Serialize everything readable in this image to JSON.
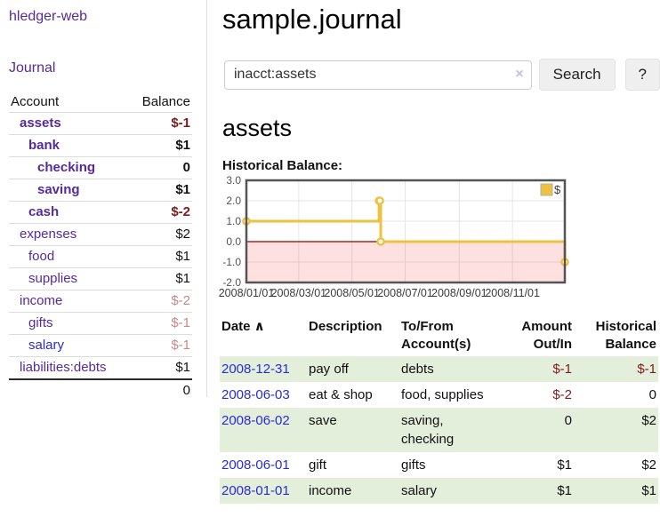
{
  "colors": {
    "accent_purple": "#542b9e",
    "link_blue": "#2b2bd5",
    "negative_strong": "#7e1c1c",
    "negative_muted": "#c98989",
    "row_stripe_green": "#e3eedb",
    "chart_line_gold": "#edc240",
    "chart_negative_fill": "rgba(255,0,0,0.12)",
    "chart_zero_line": "#8b0000",
    "chart_border": "#545454",
    "chart_grid": "#e6e6e6",
    "chart_tick_text": "#545454"
  },
  "app": {
    "brand": "hledger-web",
    "nav_journal": "Journal"
  },
  "sidebar": {
    "header": {
      "account": "Account",
      "balance": "Balance"
    },
    "accounts": [
      {
        "name": "assets",
        "indent": 1,
        "bold": true,
        "link": "purple",
        "balance": "$-1",
        "balance_style": "neg-strong"
      },
      {
        "name": "bank",
        "indent": 2,
        "bold": true,
        "link": "purple",
        "balance": "$1",
        "balance_style": "plain"
      },
      {
        "name": "checking",
        "indent": 3,
        "bold": true,
        "link": "purple",
        "balance": "0",
        "balance_style": "plain"
      },
      {
        "name": "saving",
        "indent": 3,
        "bold": true,
        "link": "purple",
        "balance": "$1",
        "balance_style": "plain"
      },
      {
        "name": "cash",
        "indent": 2,
        "bold": true,
        "link": "purple",
        "balance": "$-2",
        "balance_style": "neg-strong"
      },
      {
        "name": "expenses",
        "indent": 1,
        "bold": false,
        "link": "purple",
        "balance": "$2",
        "balance_style": "plain"
      },
      {
        "name": "food",
        "indent": 2,
        "bold": false,
        "link": "purple",
        "balance": "$1",
        "balance_style": "plain"
      },
      {
        "name": "supplies",
        "indent": 2,
        "bold": false,
        "link": "purple",
        "balance": "$1",
        "balance_style": "plain"
      },
      {
        "name": "income",
        "indent": 1,
        "bold": false,
        "link": "purple",
        "balance": "$-2",
        "balance_style": "neg-muted"
      },
      {
        "name": "gifts",
        "indent": 2,
        "bold": false,
        "link": "purple",
        "balance": "$-1",
        "balance_style": "neg-muted"
      },
      {
        "name": "salary",
        "indent": 2,
        "bold": false,
        "link": "blue",
        "balance": "$-1",
        "balance_style": "neg-muted"
      },
      {
        "name": "liabilities:debts",
        "indent": 1,
        "bold": false,
        "link": "purple",
        "balance": "$1",
        "balance_style": "plain"
      }
    ],
    "total": "0"
  },
  "header": {
    "title": "sample.journal"
  },
  "search": {
    "value": "inacct:assets",
    "clear_label": "×",
    "button_label": "Search",
    "help_label": "?"
  },
  "account_page": {
    "heading": "assets",
    "chart_label": "Historical Balance:"
  },
  "chart_data": {
    "type": "line",
    "step": true,
    "title": "Historical Balance",
    "x_range": [
      "2008-01-01",
      "2008-12-31"
    ],
    "ylim": [
      -2,
      3
    ],
    "y_ticks": [
      3.0,
      2.0,
      1.0,
      0.0,
      -1.0,
      -2.0
    ],
    "x_ticks": [
      {
        "date": "2008-01-01",
        "label": "2008/01/01"
      },
      {
        "date": "2008-03-01",
        "label": "2008/03/01"
      },
      {
        "date": "2008-05-01",
        "label": "2008/05/01"
      },
      {
        "date": "2008-07-01",
        "label": "2008/07/01"
      },
      {
        "date": "2008-09-01",
        "label": "2008/09/01"
      },
      {
        "date": "2008-11-01",
        "label": "2008/11/01"
      }
    ],
    "grid": true,
    "negative_region_shaded": true,
    "legend": {
      "position": "top-right",
      "entries": [
        "$"
      ]
    },
    "series": [
      {
        "name": "$",
        "points": [
          [
            "2008-01-01",
            1
          ],
          [
            "2008-06-01",
            2
          ],
          [
            "2008-06-02",
            2
          ],
          [
            "2008-06-03",
            0
          ],
          [
            "2008-12-31",
            -1
          ]
        ]
      }
    ]
  },
  "register": {
    "columns": [
      {
        "line1": "Date",
        "line2": "",
        "align": "left",
        "sorted_asc": true
      },
      {
        "line1": "Description",
        "line2": "",
        "align": "left",
        "sorted_asc": false
      },
      {
        "line1": "To/From",
        "line2": "Account(s)",
        "align": "left",
        "sorted_asc": false
      },
      {
        "line1": "Amount",
        "line2": "Out/In",
        "align": "right",
        "sorted_asc": false
      },
      {
        "line1": "Historical",
        "line2": "Balance",
        "align": "right",
        "sorted_asc": false
      }
    ],
    "sort_arrow": "∧",
    "rows": [
      {
        "date": "2008-12-31",
        "description": "pay off",
        "accounts": "debts",
        "amount": "$-1",
        "amount_neg": true,
        "balance": "$-1",
        "balance_neg": true
      },
      {
        "date": "2008-06-03",
        "description": "eat & shop",
        "accounts": "food, supplies",
        "amount": "$-2",
        "amount_neg": true,
        "balance": "0",
        "balance_neg": false
      },
      {
        "date": "2008-06-02",
        "description": "save",
        "accounts": "saving, checking",
        "amount": "0",
        "amount_neg": false,
        "balance": "$2",
        "balance_neg": false
      },
      {
        "date": "2008-06-01",
        "description": "gift",
        "accounts": "gifts",
        "amount": "$1",
        "amount_neg": false,
        "balance": "$2",
        "balance_neg": false
      },
      {
        "date": "2008-01-01",
        "description": "income",
        "accounts": "salary",
        "amount": "$1",
        "amount_neg": false,
        "balance": "$1",
        "balance_neg": false
      }
    ]
  }
}
